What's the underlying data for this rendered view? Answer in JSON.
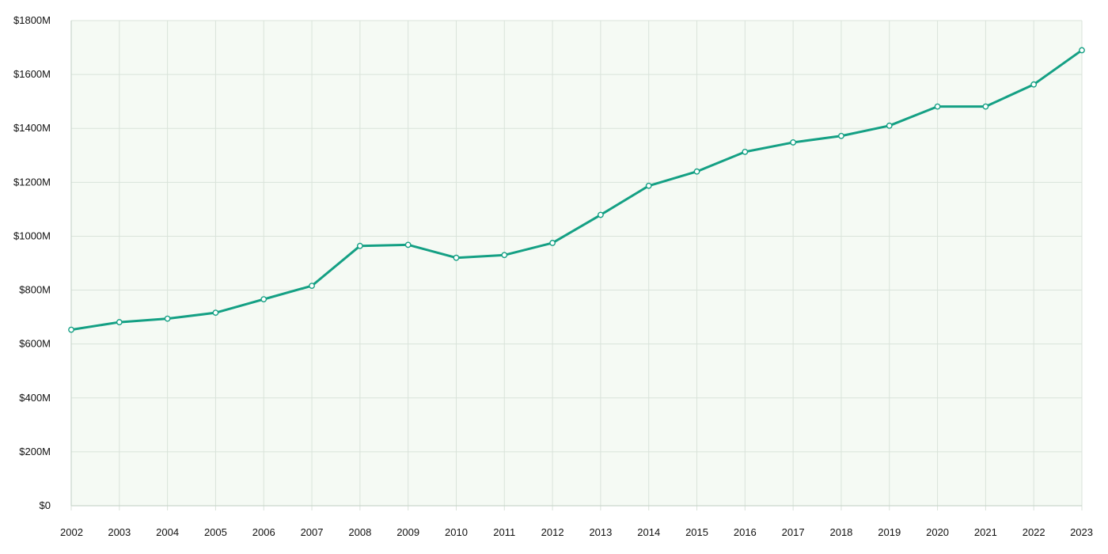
{
  "chart_data": {
    "type": "line",
    "title": "",
    "xlabel": "",
    "ylabel": "",
    "x": [
      "2002",
      "2003",
      "2004",
      "2005",
      "2006",
      "2007",
      "2008",
      "2009",
      "2010",
      "2011",
      "2012",
      "2013",
      "2014",
      "2015",
      "2016",
      "2017",
      "2018",
      "2019",
      "2020",
      "2021",
      "2022",
      "2023"
    ],
    "series": [
      {
        "values": [
          653,
          681,
          694,
          716,
          766,
          816,
          964,
          968,
          920,
          930,
          975,
          1079,
          1187,
          1240,
          1313,
          1348,
          1372,
          1410,
          1481,
          1481,
          1563,
          1690
        ]
      }
    ],
    "ylim": [
      0,
      1800
    ],
    "y_ticks": [
      0,
      200,
      400,
      600,
      800,
      1000,
      1200,
      1400,
      1600,
      1800
    ],
    "y_tick_labels": [
      "$0",
      "$200M",
      "$400M",
      "$600M",
      "$800M",
      "$1000M",
      "$1200M",
      "$1400M",
      "$1600M",
      "$1800M"
    ],
    "grid": true,
    "legend": "none",
    "colors": {
      "line": "#14a084",
      "marker_fill": "#ffffff",
      "plot_background": "#f5faf4",
      "grid": "#d9e3da"
    }
  }
}
